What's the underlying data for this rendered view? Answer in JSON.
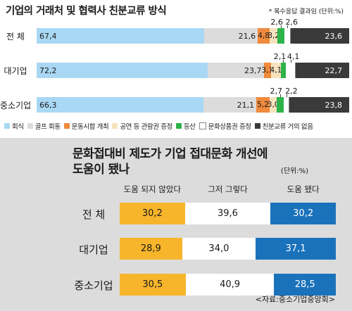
{
  "chart_data": [
    {
      "type": "bar",
      "stacked": true,
      "orientation": "horizontal",
      "title": "기업의 거래처 및 협력사 친분교류 방식",
      "note": "* 복수응답 결과임 (단위:%)",
      "categories": [
        "전  체",
        "대기업",
        "중소기업"
      ],
      "series": [
        {
          "name": "회식",
          "color": "#a9d8f4",
          "values": [
            67.4,
            72.2,
            66.3
          ],
          "labels": [
            "67,4",
            "72,2",
            "66,3"
          ]
        },
        {
          "name": "골프 회동",
          "color": "#dcdcdc",
          "values": [
            21.6,
            23.7,
            21.1
          ],
          "labels": [
            "21,6",
            "23,7",
            "21,1"
          ]
        },
        {
          "name": "운동시합 개최",
          "color": "#f08a3c",
          "values": [
            4.8,
            3.1,
            5.2
          ],
          "labels": [
            "4,8",
            "3,1",
            "5,2"
          ]
        },
        {
          "name": "공연 등 관람권 증정",
          "color": "#f6e3be",
          "values": [
            3.2,
            4.1,
            3.0
          ],
          "labels": [
            "3,2",
            "4,1",
            "3,0"
          ]
        },
        {
          "name": "등산",
          "color": "#2db34a",
          "values": [
            2.6,
            2.1,
            2.7
          ],
          "labels": [
            "2,6",
            "2,1",
            "2,7"
          ]
        },
        {
          "name": "문화상품권 증정",
          "color": "#ffffff",
          "values": [
            2.6,
            4.1,
            2.2
          ],
          "labels": [
            "2,6",
            "4,1",
            "2,2"
          ]
        },
        {
          "name": "친분교류 거의 없음",
          "color": "#3a3a3a",
          "values": [
            23.6,
            22.7,
            23.8
          ],
          "labels": [
            "23,6",
            "22,7",
            "23,8"
          ]
        }
      ]
    },
    {
      "type": "bar",
      "stacked": true,
      "orientation": "horizontal",
      "title_line1": "문화접대비 제도가 기업 접대문화 개선에",
      "title_line2": "도움이 됐나",
      "unit": "(단위:%)",
      "source": "<자료:중소기업중앙회>",
      "categories": [
        "전  체",
        "대기업",
        "중소기업"
      ],
      "series": [
        {
          "name": "도움 되지 않았다",
          "color": "#f7b52c",
          "values": [
            30.2,
            28.9,
            30.5
          ],
          "labels": [
            "30,2",
            "28,9",
            "30,5"
          ]
        },
        {
          "name": "그저 그렇다",
          "color": "#ffffff",
          "values": [
            39.6,
            34.0,
            40.9
          ],
          "labels": [
            "39,6",
            "34,0",
            "40,9"
          ]
        },
        {
          "name": "도움 됐다",
          "color": "#1a72bb",
          "values": [
            30.2,
            37.1,
            28.5
          ],
          "labels": [
            "30,2",
            "37,1",
            "28,5"
          ]
        }
      ]
    }
  ]
}
